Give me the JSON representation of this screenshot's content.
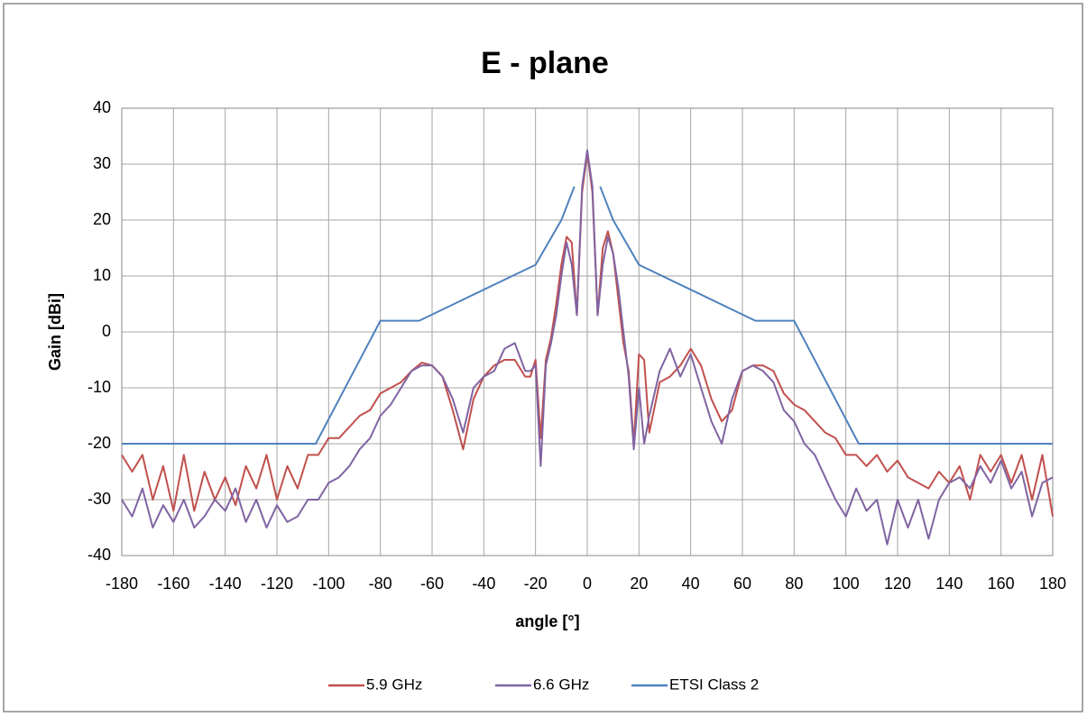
{
  "chart_data": {
    "type": "line",
    "title": "E - plane",
    "x_label": "angle [°]",
    "y_label": "Gain [dBi]",
    "xlim": [
      -180,
      180
    ],
    "ylim": [
      -40,
      40
    ],
    "xticks": [
      -180,
      -160,
      -140,
      -120,
      -100,
      -80,
      -60,
      -40,
      -20,
      0,
      20,
      40,
      60,
      80,
      100,
      120,
      140,
      160,
      180
    ],
    "yticks": [
      -40,
      -30,
      -20,
      -10,
      0,
      10,
      20,
      30,
      40
    ],
    "grid": true,
    "legend": "bottom",
    "x": [
      -180,
      -176,
      -172,
      -168,
      -164,
      -160,
      -156,
      -152,
      -148,
      -144,
      -140,
      -136,
      -132,
      -128,
      -124,
      -120,
      -116,
      -112,
      -108,
      -104,
      -100,
      -96,
      -92,
      -88,
      -84,
      -80,
      -76,
      -72,
      -68,
      -64,
      -60,
      -56,
      -52,
      -48,
      -44,
      -40,
      -36,
      -32,
      -28,
      -24,
      -22,
      -20,
      -18,
      -16,
      -14,
      -12,
      -10,
      -8,
      -6,
      -4,
      -2,
      0,
      2,
      4,
      6,
      8,
      10,
      12,
      14,
      16,
      18,
      20,
      22,
      24,
      28,
      32,
      36,
      40,
      44,
      48,
      52,
      56,
      60,
      64,
      68,
      72,
      76,
      80,
      84,
      88,
      92,
      96,
      100,
      104,
      108,
      112,
      116,
      120,
      124,
      128,
      132,
      136,
      140,
      144,
      148,
      152,
      156,
      160,
      164,
      168,
      172,
      176,
      180
    ],
    "series": [
      {
        "name": "5.9 GHz",
        "color": "#c0504d",
        "values": [
          -22,
          -25,
          -22,
          -30,
          -24,
          -32,
          -22,
          -32,
          -25,
          -30,
          -26,
          -31,
          -24,
          -28,
          -22,
          -30,
          -24,
          -28,
          -22,
          -22,
          -19,
          -19,
          -17,
          -15,
          -14,
          -11,
          -10,
          -9,
          -7,
          -5.5,
          -6,
          -8,
          -14,
          -21,
          -12,
          -8,
          -6,
          -5,
          -5,
          -8,
          -8,
          -5,
          -19,
          -5,
          -1,
          5,
          12,
          17,
          16,
          3,
          25,
          32,
          25,
          3,
          15,
          18,
          14,
          6,
          -2,
          -7,
          -20,
          -4,
          -5,
          -18,
          -9,
          -8,
          -6,
          -3,
          -6,
          -12,
          -16,
          -14,
          -7,
          -6,
          -6,
          -7,
          -11,
          -13,
          -14,
          -16,
          -18,
          -19,
          -22,
          -22,
          -24,
          -22,
          -25,
          -23,
          -26,
          -27,
          -28,
          -25,
          -27,
          -24,
          -30,
          -22,
          -25,
          -22,
          -27,
          -22,
          -30,
          -22,
          -33
        ]
      },
      {
        "name": "6.6 GHz",
        "color": "#8064a2",
        "values": [
          -30,
          -33,
          -28,
          -35,
          -31,
          -34,
          -30,
          -35,
          -33,
          -30,
          -32,
          -28,
          -34,
          -30,
          -35,
          -31,
          -34,
          -33,
          -30,
          -30,
          -27,
          -26,
          -24,
          -21,
          -19,
          -15,
          -13,
          -10,
          -7,
          -6,
          -6,
          -8,
          -12,
          -18,
          -10,
          -8,
          -7,
          -3,
          -2,
          -7,
          -7,
          -6,
          -24,
          -6,
          -2,
          3,
          10,
          16,
          12,
          3,
          26,
          32.5,
          26,
          3,
          12,
          17,
          14,
          8,
          0,
          -8,
          -21,
          -10,
          -20,
          -15,
          -7,
          -3,
          -8,
          -4,
          -10,
          -16,
          -20,
          -12,
          -7,
          -6,
          -7,
          -9,
          -14,
          -16,
          -20,
          -22,
          -26,
          -30,
          -33,
          -28,
          -32,
          -30,
          -38,
          -30,
          -35,
          -30,
          -37,
          -30,
          -27,
          -26,
          -28,
          -24,
          -27,
          -23,
          -28,
          -25,
          -33,
          -27,
          -26
        ]
      },
      {
        "name": "ETSI Class 2",
        "color": "#4f81bd",
        "x": [
          -180,
          -105,
          -80,
          -65,
          -20,
          -10,
          -5,
          0,
          5,
          10,
          20,
          65,
          80,
          105,
          180
        ],
        "values": [
          -20,
          -20,
          2,
          2,
          12,
          20,
          26,
          null,
          26,
          20,
          12,
          2,
          2,
          -20,
          -20
        ]
      }
    ]
  }
}
